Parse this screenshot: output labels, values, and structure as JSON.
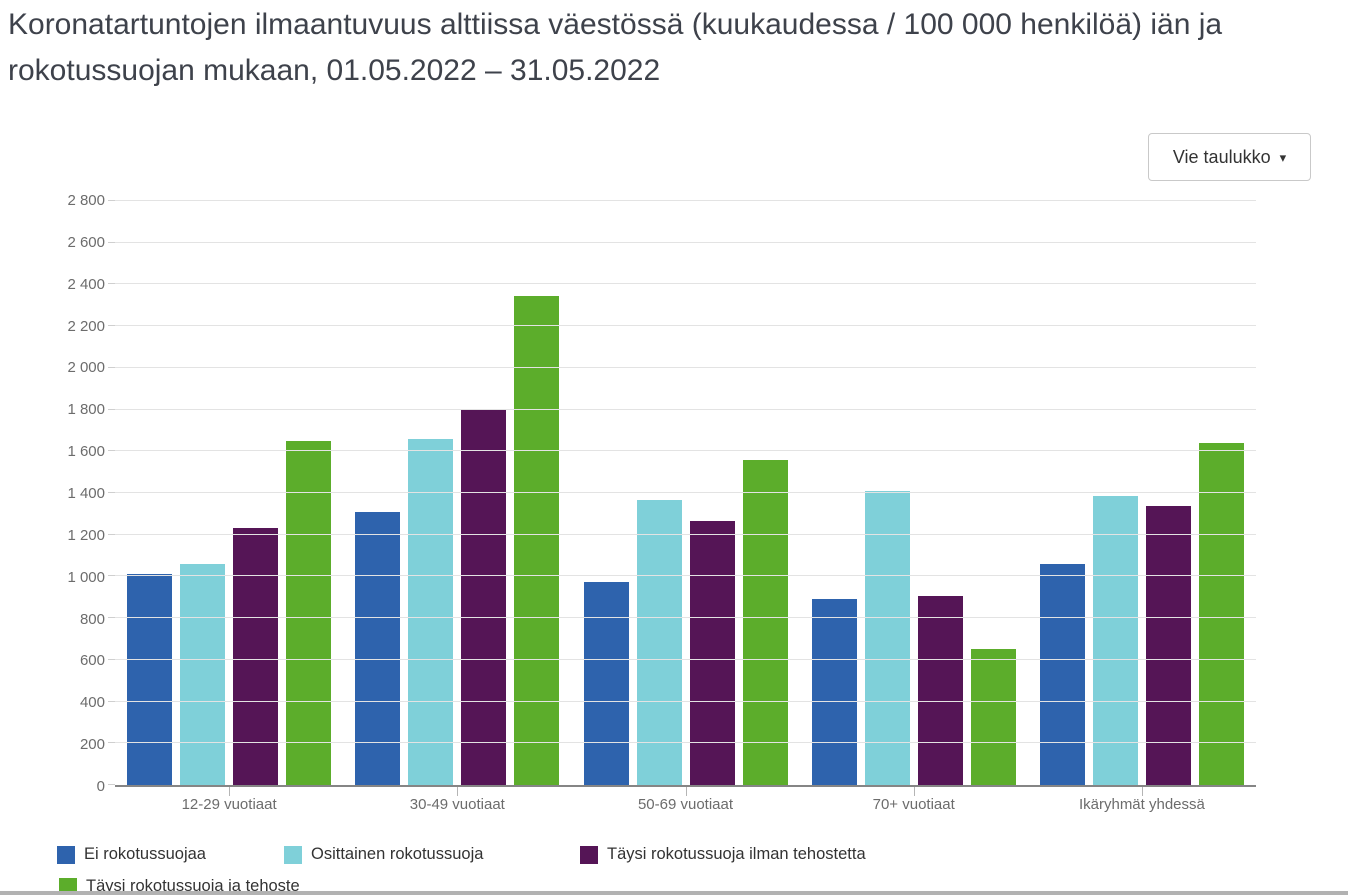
{
  "toolbar": {
    "export_label": "Vie taulukko",
    "caret_icon": "▾"
  },
  "chart_data": {
    "type": "bar",
    "title": "Koronatartuntojen ilmaantuvuus alttiissa väestössä (kuukaudessa / 100 000 henkilöä) iän ja rokotussuojan mukaan, 01.05.2022 – 31.05.2022",
    "categories": [
      "12-29 vuotiaat",
      "30-49 vuotiaat",
      "50-69 vuotiaat",
      "70+ vuotiaat",
      "Ikäryhmät yhdessä"
    ],
    "series": [
      {
        "name": "Ei rokotussuojaa",
        "color": "#2e63ad",
        "values": [
          1010,
          1310,
          975,
          890,
          1060
        ]
      },
      {
        "name": "Osittainen rokotussuoja",
        "color": "#7fd0d9",
        "values": [
          1060,
          1660,
          1365,
          1410,
          1385
        ]
      },
      {
        "name": "Täysi rokotussuoja ilman tehostetta",
        "color": "#551556",
        "values": [
          1230,
          1805,
          1265,
          905,
          1340
        ]
      },
      {
        "name": "Täysi rokotussuoja ja tehoste",
        "color": "#5cad2b",
        "values": [
          1650,
          2345,
          1560,
          650,
          1640
        ]
      }
    ],
    "xlabel": "",
    "ylabel": "",
    "ylim": [
      0,
      2800
    ],
    "ytick_step": 200,
    "grid": true,
    "legend_position": "bottom",
    "colors": {
      "axis_line": "#858585",
      "gridline": "#e3e3e3",
      "tick_label": "#6c6c6c"
    }
  },
  "legend_layout_note": "row1: items 1-3, row2: item 4 (clipped at page bottom)"
}
